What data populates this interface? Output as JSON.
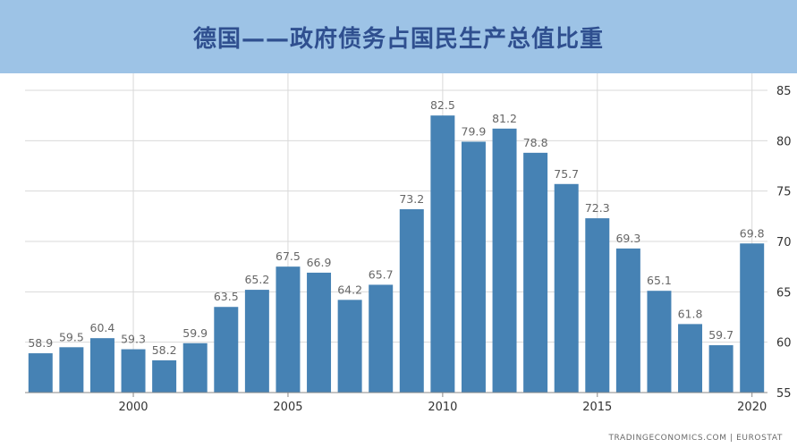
{
  "title": "德国——政府债务占国民生产总值比重",
  "source": "TRADINGECONOMICS.COM  |  EUROSTAT",
  "colors": {
    "bar": "#4682b4",
    "label": "#666666",
    "grid": "#d9d9d9",
    "axis": "#333333",
    "header": "#9dc3e6"
  },
  "chart_data": {
    "type": "bar",
    "categories": [
      "1997",
      "1998",
      "1999",
      "2000",
      "2001",
      "2002",
      "2003",
      "2004",
      "2005",
      "2006",
      "2007",
      "2008",
      "2009",
      "2010",
      "2011",
      "2012",
      "2013",
      "2014",
      "2015",
      "2016",
      "2017",
      "2018",
      "2019",
      "2020"
    ],
    "values": [
      58.9,
      59.5,
      60.4,
      59.3,
      58.2,
      59.9,
      63.5,
      65.2,
      67.5,
      66.9,
      64.2,
      65.7,
      73.2,
      82.5,
      79.9,
      81.2,
      78.8,
      75.7,
      72.3,
      69.3,
      65.1,
      61.8,
      59.7,
      69.8
    ],
    "x_tick_labels": [
      "2000",
      "2005",
      "2010",
      "2015",
      "2020"
    ],
    "y_ticks": [
      55,
      60,
      65,
      70,
      75,
      80,
      85
    ],
    "ylim": [
      55,
      85
    ],
    "grid": true,
    "y_axis_position": "right"
  }
}
